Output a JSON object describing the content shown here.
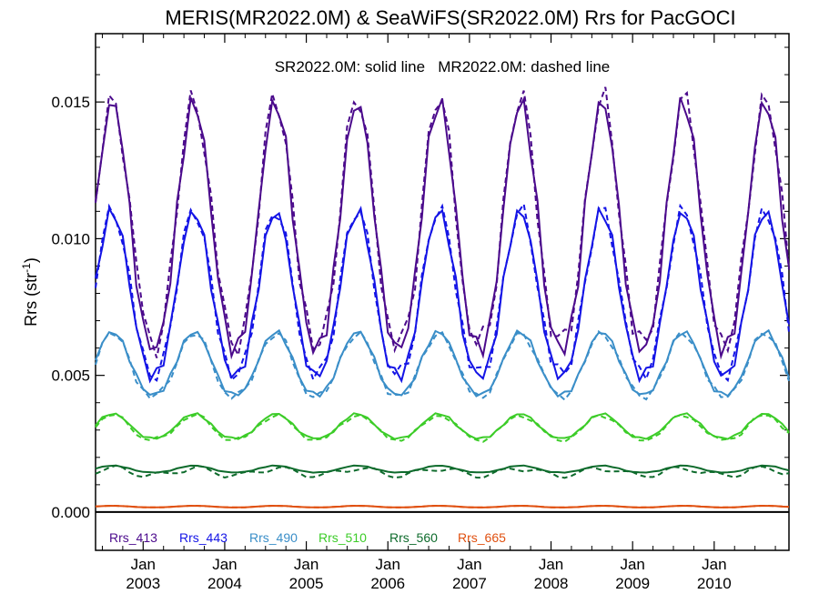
{
  "chart_data": {
    "type": "line",
    "title": "MERIS(MR2022.0M) & SeaWiFS(SR2022.0M)  Rrs for PacGOCI",
    "annotation": "SR2022.0M: solid line   MR2022.0M: dashed line",
    "ylabel_main": "Rrs (str",
    "ylabel_sup": "-1",
    "ylabel_end": ")",
    "ylim": [
      -0.0014,
      0.0175
    ],
    "y_ticks": [
      "0.000",
      "0.005",
      "0.010",
      "0.015"
    ],
    "x_range": [
      "2002-06",
      "2010-12"
    ],
    "x_ticks": [
      {
        "month": "Jan",
        "year": "2003"
      },
      {
        "month": "Jan",
        "year": "2004"
      },
      {
        "month": "Jan",
        "year": "2005"
      },
      {
        "month": "Jan",
        "year": "2006"
      },
      {
        "month": "Jan",
        "year": "2007"
      },
      {
        "month": "Jan",
        "year": "2008"
      },
      {
        "month": "Jan",
        "year": "2009"
      },
      {
        "month": "Jan",
        "year": "2010"
      }
    ],
    "zero_line": true,
    "grid": false,
    "legend_position": "bottom",
    "series": [
      {
        "name": "Rrs_413",
        "color": "#4b0a8c",
        "min": 0.006,
        "max": 0.015,
        "dashed_offset": 0.0003
      },
      {
        "name": "Rrs_443",
        "color": "#1414e6",
        "min": 0.005,
        "max": 0.011,
        "dashed_offset": 0.0001
      },
      {
        "name": "Rrs_490",
        "color": "#3a8ec8",
        "min": 0.0043,
        "max": 0.0066,
        "dashed_offset": -0.0001
      },
      {
        "name": "Rrs_510",
        "color": "#3ccc28",
        "min": 0.0027,
        "max": 0.0036,
        "dashed_offset": -0.0001
      },
      {
        "name": "Rrs_560",
        "color": "#0e6b2c",
        "min": 0.00145,
        "max": 0.0017,
        "dashed_offset": -0.0002
      },
      {
        "name": "Rrs_665",
        "color": "#e05010",
        "min": 0.00017,
        "max": 0.00023,
        "dashed_offset": 0.0
      }
    ]
  }
}
